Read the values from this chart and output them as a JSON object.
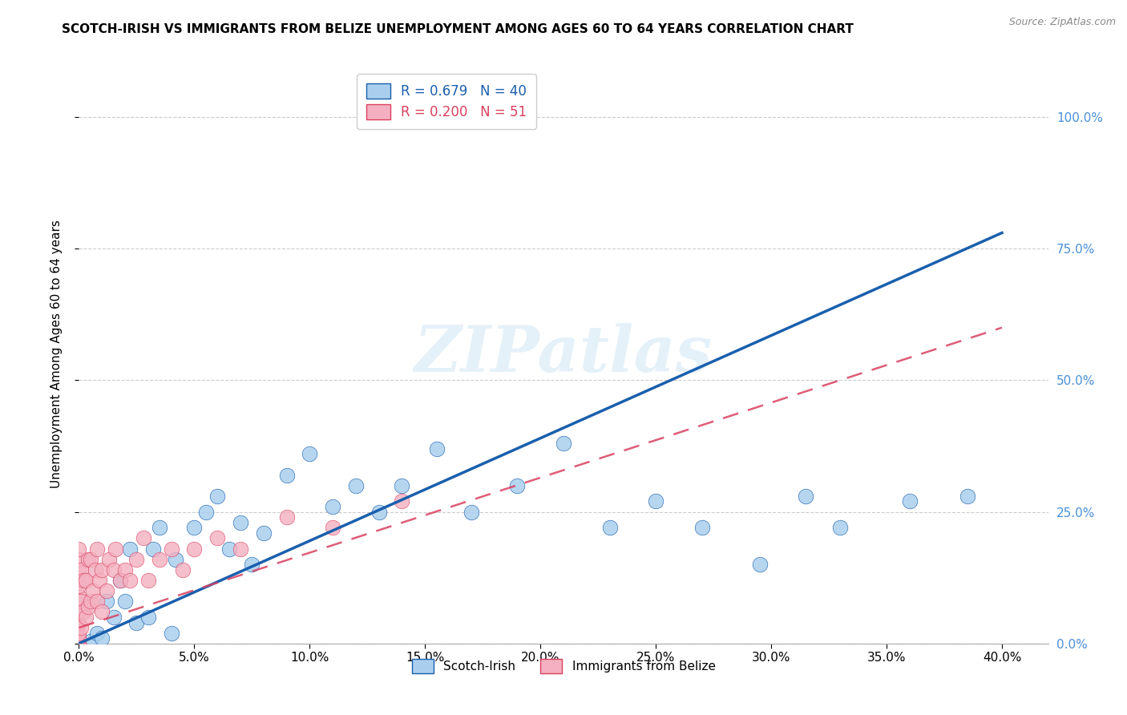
{
  "title": "SCOTCH-IRISH VS IMMIGRANTS FROM BELIZE UNEMPLOYMENT AMONG AGES 60 TO 64 YEARS CORRELATION CHART",
  "source": "Source: ZipAtlas.com",
  "ylabel": "Unemployment Among Ages 60 to 64 years",
  "xlim": [
    0.0,
    0.42
  ],
  "ylim": [
    0.0,
    1.1
  ],
  "xtick_positions": [
    0.0,
    0.05,
    0.1,
    0.15,
    0.2,
    0.25,
    0.3,
    0.35,
    0.4
  ],
  "xtick_labels": [
    "0.0%",
    "5.0%",
    "10.0%",
    "15.0%",
    "20.0%",
    "25.0%",
    "30.0%",
    "35.0%",
    "40.0%"
  ],
  "ytick_positions": [
    0.0,
    0.25,
    0.5,
    0.75,
    1.0
  ],
  "ytick_labels": [
    "0.0%",
    "25.0%",
    "50.0%",
    "75.0%",
    "100.0%"
  ],
  "blue_R": 0.679,
  "blue_N": 40,
  "pink_R": 0.2,
  "pink_N": 51,
  "blue_color": "#aacfee",
  "pink_color": "#f4b0c0",
  "blue_line_color": "#1a5fad",
  "pink_line_color": "#d94060",
  "watermark_text": "ZIPatlas",
  "blue_line_x0": 0.0,
  "blue_line_y0": 0.0,
  "blue_line_x1": 0.4,
  "blue_line_y1": 0.78,
  "pink_line_x0": 0.0,
  "pink_line_y0": 0.03,
  "pink_line_x1": 0.4,
  "pink_line_y1": 0.6,
  "blue_scatter_x": [
    0.0,
    0.005,
    0.008,
    0.01,
    0.012,
    0.015,
    0.018,
    0.02,
    0.022,
    0.025,
    0.03,
    0.032,
    0.035,
    0.04,
    0.042,
    0.05,
    0.055,
    0.06,
    0.065,
    0.07,
    0.075,
    0.08,
    0.09,
    0.1,
    0.11,
    0.12,
    0.13,
    0.14,
    0.155,
    0.17,
    0.19,
    0.21,
    0.23,
    0.25,
    0.27,
    0.295,
    0.315,
    0.33,
    0.36,
    0.385
  ],
  "blue_scatter_y": [
    0.01,
    0.005,
    0.02,
    0.01,
    0.08,
    0.05,
    0.12,
    0.08,
    0.18,
    0.04,
    0.05,
    0.18,
    0.22,
    0.02,
    0.16,
    0.22,
    0.25,
    0.28,
    0.18,
    0.23,
    0.15,
    0.21,
    0.32,
    0.36,
    0.26,
    0.3,
    0.25,
    0.3,
    0.37,
    0.25,
    0.3,
    0.38,
    0.22,
    0.27,
    0.22,
    0.15,
    0.28,
    0.22,
    0.27,
    0.28
  ],
  "pink_scatter_x": [
    0.0,
    0.0,
    0.0,
    0.0,
    0.0,
    0.0,
    0.0,
    0.0,
    0.0,
    0.0,
    0.0,
    0.0,
    0.0,
    0.0,
    0.001,
    0.001,
    0.001,
    0.002,
    0.002,
    0.003,
    0.003,
    0.004,
    0.004,
    0.005,
    0.005,
    0.006,
    0.007,
    0.008,
    0.008,
    0.009,
    0.01,
    0.01,
    0.012,
    0.013,
    0.015,
    0.016,
    0.018,
    0.02,
    0.022,
    0.025,
    0.028,
    0.03,
    0.035,
    0.04,
    0.045,
    0.05,
    0.06,
    0.07,
    0.09,
    0.11,
    0.14
  ],
  "pink_scatter_y": [
    0.0,
    0.0,
    0.0,
    0.0,
    0.0,
    0.01,
    0.02,
    0.04,
    0.06,
    0.09,
    0.11,
    0.14,
    0.16,
    0.18,
    0.03,
    0.08,
    0.14,
    0.06,
    0.12,
    0.05,
    0.12,
    0.07,
    0.16,
    0.08,
    0.16,
    0.1,
    0.14,
    0.08,
    0.18,
    0.12,
    0.06,
    0.14,
    0.1,
    0.16,
    0.14,
    0.18,
    0.12,
    0.14,
    0.12,
    0.16,
    0.2,
    0.12,
    0.16,
    0.18,
    0.14,
    0.18,
    0.2,
    0.18,
    0.24,
    0.22,
    0.27
  ]
}
